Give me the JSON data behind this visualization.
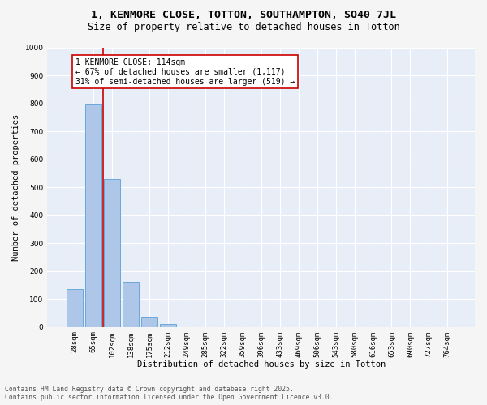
{
  "title_line1": "1, KENMORE CLOSE, TOTTON, SOUTHAMPTON, SO40 7JL",
  "title_line2": "Size of property relative to detached houses in Totton",
  "xlabel": "Distribution of detached houses by size in Totton",
  "ylabel": "Number of detached properties",
  "categories": [
    "28sqm",
    "65sqm",
    "102sqm",
    "138sqm",
    "175sqm",
    "212sqm",
    "249sqm",
    "285sqm",
    "322sqm",
    "359sqm",
    "396sqm",
    "433sqm",
    "469sqm",
    "506sqm",
    "543sqm",
    "580sqm",
    "616sqm",
    "653sqm",
    "690sqm",
    "727sqm",
    "764sqm"
  ],
  "values": [
    135,
    795,
    530,
    160,
    37,
    12,
    0,
    0,
    0,
    0,
    0,
    0,
    0,
    0,
    0,
    0,
    0,
    0,
    0,
    0,
    0
  ],
  "bar_color": "#aec6e8",
  "bar_edge_color": "#5a9fd4",
  "vline_color": "#cc0000",
  "annotation_text": "1 KENMORE CLOSE: 114sqm\n← 67% of detached houses are smaller (1,117)\n31% of semi-detached houses are larger (519) →",
  "annotation_box_facecolor": "#ffffff",
  "annotation_box_edgecolor": "#cc0000",
  "ylim": [
    0,
    1000
  ],
  "yticks": [
    0,
    100,
    200,
    300,
    400,
    500,
    600,
    700,
    800,
    900,
    1000
  ],
  "plot_bg_color": "#e8eef8",
  "fig_bg_color": "#f5f5f5",
  "grid_color": "#ffffff",
  "footer_text": "Contains HM Land Registry data © Crown copyright and database right 2025.\nContains public sector information licensed under the Open Government Licence v3.0.",
  "title_fontsize": 9.5,
  "subtitle_fontsize": 8.5,
  "axis_label_fontsize": 7.5,
  "tick_fontsize": 6.5,
  "annotation_fontsize": 7,
  "footer_fontsize": 5.8,
  "vline_bar_index": 1.5
}
